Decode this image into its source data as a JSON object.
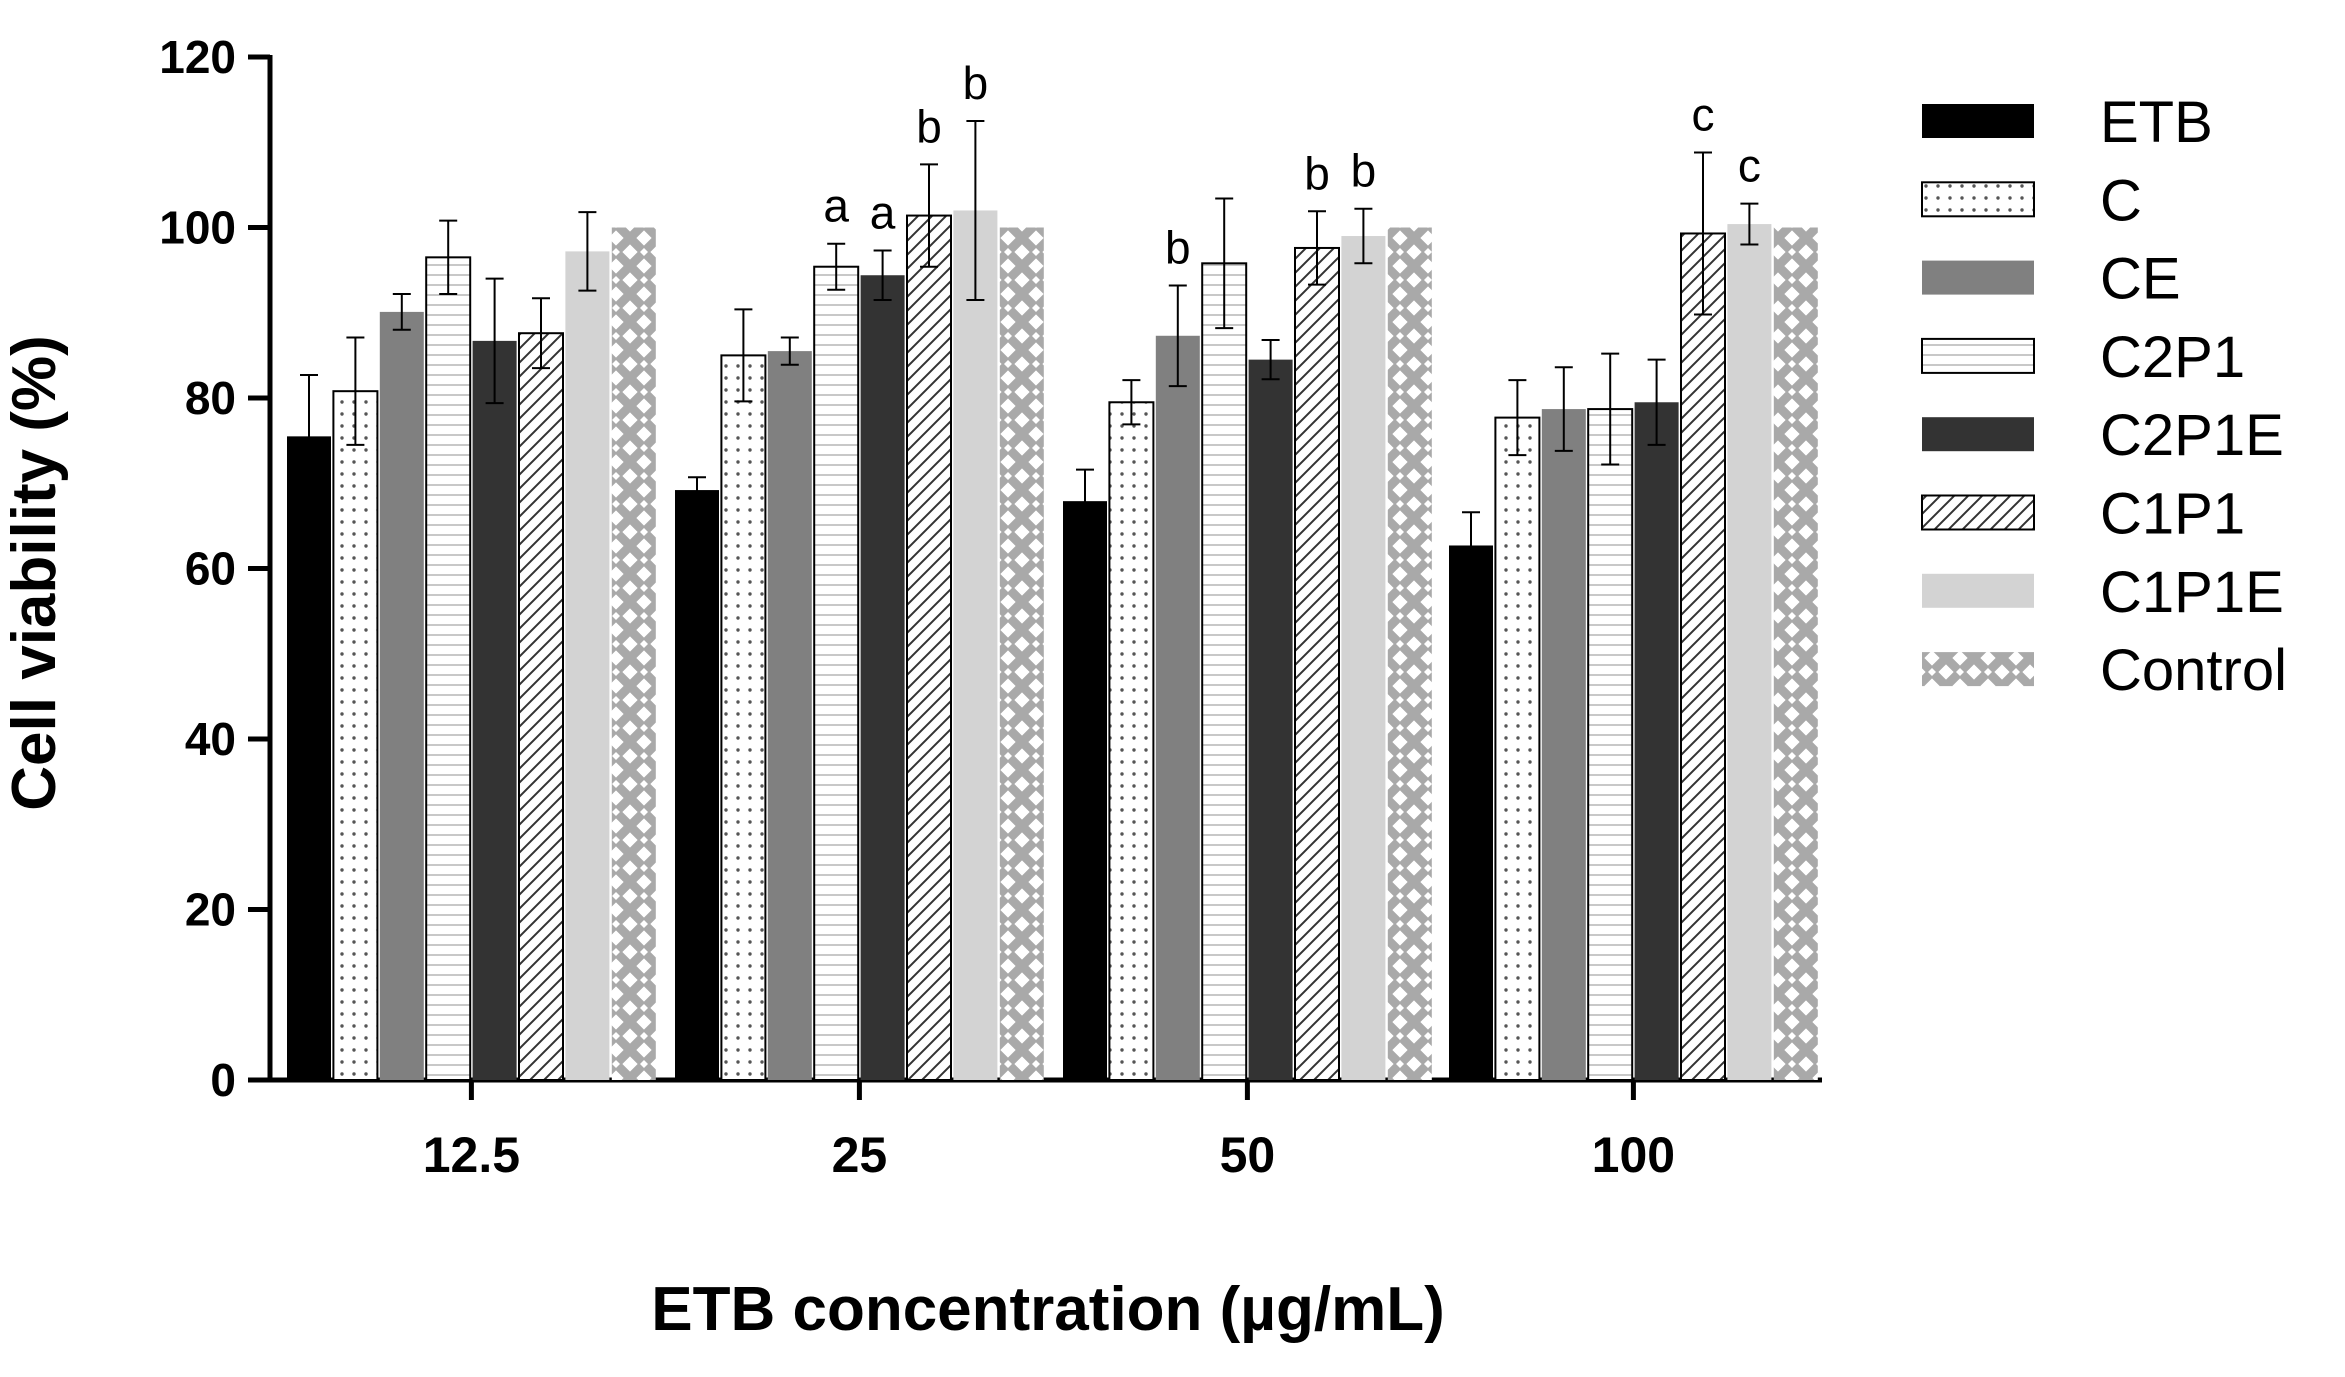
{
  "chart_data": {
    "type": "bar",
    "title": "",
    "xlabel": "ETB concentration (µg/mL)",
    "ylabel": "Cell viability (%)",
    "ylim": [
      0,
      120
    ],
    "yticks": [
      0,
      20,
      40,
      60,
      80,
      100,
      120
    ],
    "categories": [
      "12.5",
      "25",
      "50",
      "100"
    ],
    "series": [
      {
        "name": "ETB",
        "values": [
          75.5,
          69.2,
          67.9,
          62.7
        ],
        "errors": [
          7.2,
          1.5,
          3.7,
          3.9
        ],
        "fill": "#000000",
        "pattern": "solid"
      },
      {
        "name": "C",
        "values": [
          80.8,
          85.0,
          79.5,
          77.7
        ],
        "errors": [
          6.3,
          5.4,
          2.6,
          4.4
        ],
        "fill": "#ffffff",
        "pattern": "dots"
      },
      {
        "name": "CE",
        "values": [
          90.1,
          85.5,
          87.3,
          78.7
        ],
        "errors": [
          2.1,
          1.6,
          5.9,
          4.9
        ],
        "fill": "#808080",
        "pattern": "solid"
      },
      {
        "name": "C2P1",
        "values": [
          96.5,
          95.4,
          95.8,
          78.7
        ],
        "errors": [
          4.3,
          2.7,
          7.6,
          6.5
        ],
        "fill": "#ffffff",
        "pattern": "hlines"
      },
      {
        "name": "C2P1E",
        "values": [
          86.7,
          94.4,
          84.5,
          79.5
        ],
        "errors": [
          7.3,
          2.9,
          2.3,
          5.0
        ],
        "fill": "#333333",
        "pattern": "solid"
      },
      {
        "name": "C1P1",
        "values": [
          87.6,
          101.4,
          97.6,
          99.3
        ],
        "errors": [
          4.1,
          6.0,
          4.3,
          9.5
        ],
        "fill": "#ffffff",
        "pattern": "diag"
      },
      {
        "name": "C1P1E",
        "values": [
          97.2,
          102.0,
          99.0,
          100.4
        ],
        "errors": [
          4.6,
          10.5,
          3.2,
          2.4
        ],
        "fill": "#d3d3d3",
        "pattern": "solid"
      },
      {
        "name": "Control",
        "values": [
          100,
          100,
          100,
          100
        ],
        "errors": [
          0,
          0,
          0,
          0
        ],
        "fill": "#a9a9a9",
        "pattern": "cross"
      }
    ],
    "annotations": [
      {
        "category": "25",
        "series": "C2P1",
        "text": "a"
      },
      {
        "category": "25",
        "series": "C2P1E",
        "text": "a"
      },
      {
        "category": "25",
        "series": "C1P1",
        "text": "b"
      },
      {
        "category": "25",
        "series": "C1P1E",
        "text": "b"
      },
      {
        "category": "50",
        "series": "CE",
        "text": "b"
      },
      {
        "category": "50",
        "series": "C1P1",
        "text": "b"
      },
      {
        "category": "50",
        "series": "C1P1E",
        "text": "b"
      },
      {
        "category": "100",
        "series": "C1P1",
        "text": "c"
      },
      {
        "category": "100",
        "series": "C1P1E",
        "text": "c"
      }
    ],
    "legend": "right"
  }
}
